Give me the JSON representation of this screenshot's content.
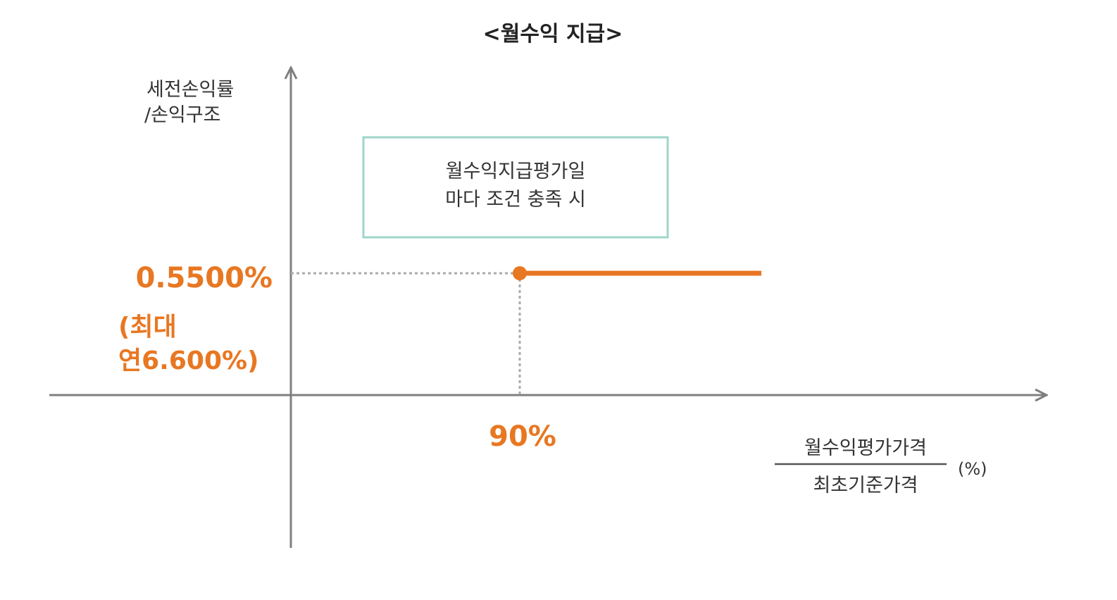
{
  "title": "<월수익 지급>",
  "y_axis_label": [
    "세전손익률",
    "/손익구조"
  ],
  "box_text": [
    "월수익지급평가일",
    "마다 조건 충족 시"
  ],
  "y_value_label": "0.5500%",
  "y_value_note": [
    "(최대",
    "연6.600%)"
  ],
  "x_value_label": "90%",
  "x_axis_label": {
    "numerator": "월수익평가가격",
    "denominator": "최초기준가격",
    "unit": "(%)"
  },
  "colors": {
    "accent": "#e87722",
    "axis": "#7f7f7f",
    "box_border": "#9dd6ca",
    "dotted": "#aaaaaa"
  },
  "chart_data": {
    "type": "line",
    "title": "<월수익 지급>",
    "ylabel": "세전손익률/손익구조",
    "xlabel": "월수익평가가격/최초기준가격 (%)",
    "series": [
      {
        "x": [
          90,
          185
        ],
        "y": [
          0.55,
          0.55
        ]
      }
    ],
    "threshold_x": 90,
    "payout_y": 0.55,
    "annotation": "월수익지급평가일 마다 조건 충족 시",
    "grid": false
  }
}
